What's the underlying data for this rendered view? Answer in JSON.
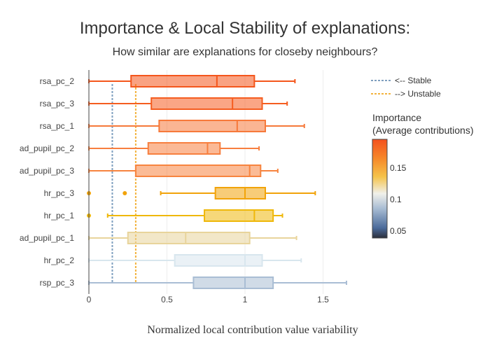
{
  "title": "Importance & Local Stability of explanations:",
  "subtitle": "How similar are explanations for closeby neighbours?",
  "chart_data": {
    "type": "box",
    "xlabel": "Normalized local contribution value variability",
    "xlim": [
      0,
      1.65
    ],
    "xticks": [
      0,
      0.5,
      1,
      1.5
    ],
    "xtick_labels": [
      "0",
      "0.5",
      "1",
      "1.5"
    ],
    "grid": true,
    "reference_lines": [
      {
        "name": "<-- Stable",
        "x": 0.15,
        "color": "#7f9fbf",
        "style": "dotted"
      },
      {
        "name": "--> Unstable",
        "x": 0.3,
        "color": "#f3b33e",
        "style": "dotted"
      }
    ],
    "legend_position": "top-right",
    "colorbar": {
      "title_line1": "Importance",
      "title_line2": "(Average contributions)",
      "ticks": [
        "0.15",
        "0.1",
        "0.05"
      ]
    },
    "series": [
      {
        "name": "rsa_pc_2",
        "min": 0,
        "q1": 0.27,
        "median": 0.82,
        "q3": 1.06,
        "max": 1.32,
        "outliers": [],
        "color": "#f4561c"
      },
      {
        "name": "rsa_pc_3",
        "min": 0,
        "q1": 0.4,
        "median": 0.92,
        "q3": 1.11,
        "max": 1.27,
        "outliers": [],
        "color": "#f55d20"
      },
      {
        "name": "rsa_pc_1",
        "min": 0,
        "q1": 0.45,
        "median": 0.95,
        "q3": 1.13,
        "max": 1.38,
        "outliers": [],
        "color": "#f6793a"
      },
      {
        "name": "ad_pupil_pc_2",
        "min": 0,
        "q1": 0.38,
        "median": 0.76,
        "q3": 0.84,
        "max": 1.09,
        "outliers": [],
        "color": "#f77f3f"
      },
      {
        "name": "ad_pupil_pc_3",
        "min": 0,
        "q1": 0.3,
        "median": 1.03,
        "q3": 1.1,
        "max": 1.21,
        "outliers": [],
        "color": "#f7843f"
      },
      {
        "name": "hr_pc_3",
        "min": 0.46,
        "q1": 0.81,
        "median": 1.0,
        "q3": 1.13,
        "max": 1.45,
        "outliers": [
          0,
          0.23
        ],
        "color": "#f1a30a"
      },
      {
        "name": "hr_pc_1",
        "min": 0.12,
        "q1": 0.74,
        "median": 1.06,
        "q3": 1.18,
        "max": 1.24,
        "outliers": [
          0
        ],
        "color": "#efb80b"
      },
      {
        "name": "ad_pupil_pc_1",
        "min": 0,
        "q1": 0.25,
        "median": 0.62,
        "q3": 1.03,
        "max": 1.33,
        "outliers": [],
        "color": "#e8d49b"
      },
      {
        "name": "hr_pc_2",
        "min": 0,
        "q1": 0.55,
        "median": 1.0,
        "q3": 1.11,
        "max": 1.36,
        "outliers": [],
        "color": "#d8e6ee"
      },
      {
        "name": "rsp_pc_3",
        "min": 0,
        "q1": 0.67,
        "median": 1.0,
        "q3": 1.18,
        "max": 1.65,
        "outliers": [],
        "color": "#a9bdd4"
      }
    ]
  }
}
